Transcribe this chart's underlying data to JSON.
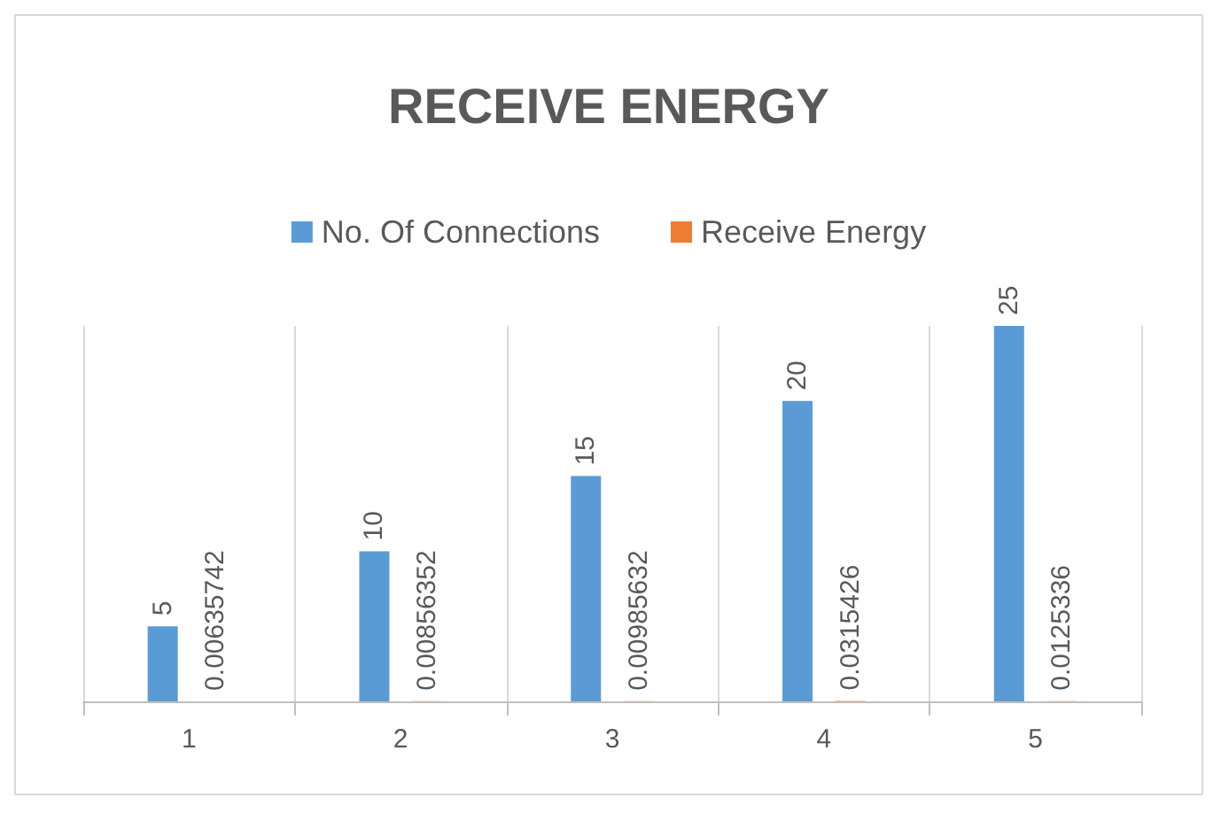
{
  "chart_data": {
    "type": "bar",
    "title": "RECEIVE ENERGY",
    "categories": [
      "1",
      "2",
      "3",
      "4",
      "5"
    ],
    "series": [
      {
        "name": "No. Of Connections",
        "color": "#5b9bd5",
        "values": [
          5,
          10,
          15,
          20,
          25
        ]
      },
      {
        "name": "Receive Energy",
        "color": "#ed7d31",
        "values": [
          0.00635742,
          0.00856352,
          0.00985632,
          0.0315426,
          0.0125336
        ]
      }
    ],
    "data_labels": true,
    "grid": "x",
    "legend": "top"
  }
}
